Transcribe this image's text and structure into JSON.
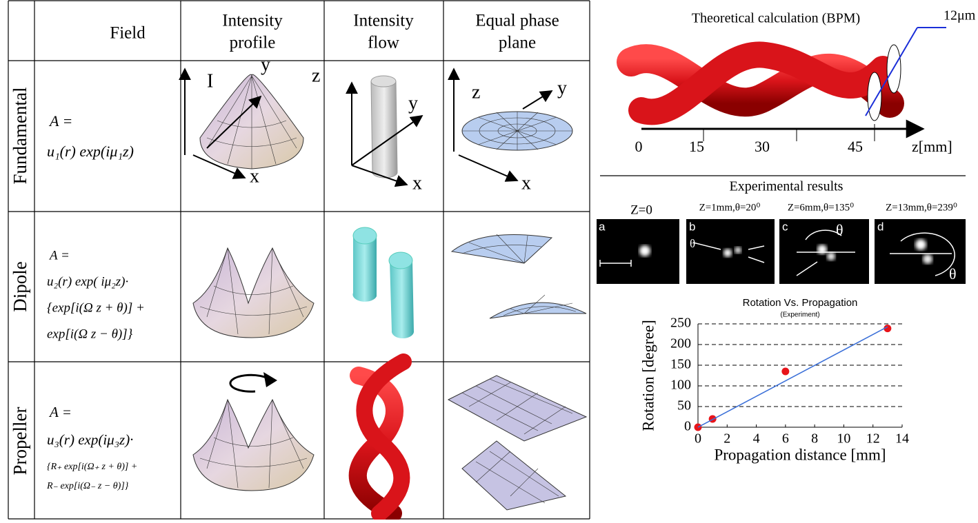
{
  "table": {
    "headers": [
      [
        "Field"
      ],
      [
        "Intensity",
        "profile"
      ],
      [
        "Intensity",
        "flow"
      ],
      [
        "Equal phase",
        "plane"
      ]
    ],
    "rows": [
      {
        "label": "Fundamental",
        "formula": [
          "A =",
          "u₁(r) exp(iμ₁z)"
        ]
      },
      {
        "label": "Dipole",
        "formula": [
          "A =",
          "u₂(r) exp( iμ₂z)·",
          "{exp[i(Ω z + θ)] +",
          "exp[i(Ω z − θ)]}"
        ]
      },
      {
        "label": "Propeller",
        "formula": [
          "A =",
          "u₃(r) exp(iμ₃z)·",
          "{R₊ exp[i(Ω₊ z + θ)] +",
          "R₋ exp[i(Ω₋ z − θ)]}"
        ]
      }
    ],
    "axes": {
      "profile": [
        "I",
        "y",
        "x"
      ],
      "flow": [
        "z",
        "y",
        "x"
      ],
      "phase": [
        "z",
        "y",
        "x"
      ]
    }
  },
  "bpm": {
    "title": "Theoretical calculation (BPM)",
    "width_label": "12μm",
    "axis_ticks": [
      0,
      15,
      30,
      45
    ],
    "axis_label": "z[mm]"
  },
  "experiment": {
    "title": "Experimental results",
    "captions": [
      "Z=0",
      "Z=1mm,θ=20⁰",
      "Z=6mm,θ=135⁰",
      "Z=13mm,θ=239⁰"
    ],
    "panels": [
      "a",
      "b",
      "c",
      "d"
    ],
    "theta": "θ"
  },
  "chart_data": {
    "type": "scatter",
    "title": "Rotation Vs. Propagation",
    "subtitle": "(Experiment)",
    "x_label": "Propagation distance [mm]",
    "y_label": "Rotation [degree]",
    "series": [
      {
        "type": "scatter",
        "color": "#e8141a",
        "x": [
          0,
          1,
          6,
          13
        ],
        "values": [
          0,
          20,
          135,
          239
        ]
      },
      {
        "type": "line",
        "color": "#3a6fd8",
        "x": [
          0,
          13
        ],
        "values": [
          0,
          243
        ]
      }
    ],
    "xlim": [
      0,
      14
    ],
    "ylim": [
      0,
      250
    ],
    "xticks": [
      0,
      2,
      4,
      6,
      8,
      10,
      12,
      14
    ],
    "yticks": [
      0,
      50,
      100,
      150,
      200,
      250
    ],
    "grid": true
  }
}
